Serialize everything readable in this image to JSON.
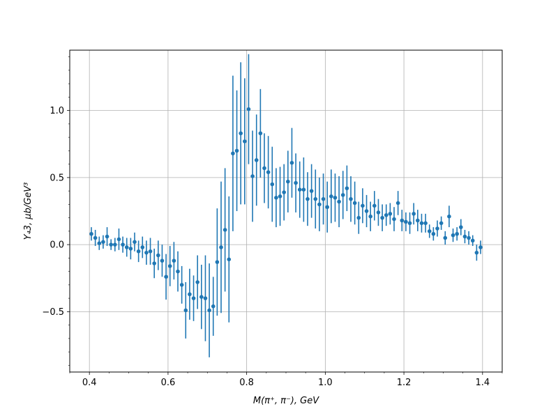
{
  "chart_data": {
    "type": "scatter",
    "title": "",
    "xlabel": "M(π⁺, π⁻), GeV",
    "ylabel": "Y₄3, μb/GeV³",
    "xlim": [
      0.35,
      1.45
    ],
    "ylim": [
      -0.95,
      1.45
    ],
    "xticks": [
      0.4,
      0.6,
      0.8,
      1.0,
      1.2,
      1.4
    ],
    "xtick_labels": [
      "0.4",
      "0.6",
      "0.8",
      "1.0",
      "1.2",
      "1.4"
    ],
    "yticks": [
      -0.5,
      0.0,
      0.5,
      1.0
    ],
    "ytick_labels": [
      "−0.5",
      "0.0",
      "0.5",
      "1.0"
    ],
    "grid": true,
    "color": "#1f77b4",
    "series": [
      {
        "name": "",
        "x": [
          0.405,
          0.415,
          0.425,
          0.435,
          0.445,
          0.455,
          0.465,
          0.475,
          0.485,
          0.495,
          0.505,
          0.515,
          0.525,
          0.535,
          0.545,
          0.555,
          0.565,
          0.575,
          0.585,
          0.595,
          0.605,
          0.615,
          0.625,
          0.635,
          0.645,
          0.655,
          0.665,
          0.675,
          0.685,
          0.695,
          0.705,
          0.715,
          0.725,
          0.735,
          0.745,
          0.755,
          0.765,
          0.775,
          0.785,
          0.795,
          0.805,
          0.815,
          0.825,
          0.835,
          0.845,
          0.855,
          0.865,
          0.875,
          0.885,
          0.895,
          0.905,
          0.915,
          0.925,
          0.935,
          0.945,
          0.955,
          0.965,
          0.975,
          0.985,
          0.995,
          1.005,
          1.015,
          1.025,
          1.035,
          1.045,
          1.055,
          1.065,
          1.075,
          1.085,
          1.095,
          1.105,
          1.115,
          1.125,
          1.135,
          1.145,
          1.155,
          1.165,
          1.175,
          1.185,
          1.195,
          1.205,
          1.215,
          1.225,
          1.235,
          1.245,
          1.255,
          1.265,
          1.275,
          1.285,
          1.295,
          1.305,
          1.315,
          1.325,
          1.335,
          1.345,
          1.355,
          1.365,
          1.375,
          1.385,
          1.395
        ],
        "y": [
          0.08,
          0.05,
          0.01,
          0.02,
          0.06,
          0.0,
          0.0,
          0.04,
          0.0,
          -0.02,
          -0.03,
          0.02,
          -0.05,
          -0.02,
          -0.06,
          -0.05,
          -0.14,
          -0.08,
          -0.12,
          -0.24,
          -0.16,
          -0.12,
          -0.2,
          -0.3,
          -0.49,
          -0.37,
          -0.4,
          -0.28,
          -0.39,
          -0.4,
          -0.49,
          -0.46,
          -0.13,
          -0.02,
          0.11,
          -0.11,
          0.68,
          0.7,
          0.83,
          0.77,
          1.01,
          0.51,
          0.63,
          0.83,
          0.57,
          0.54,
          0.45,
          0.35,
          0.36,
          0.39,
          0.47,
          0.61,
          0.46,
          0.41,
          0.41,
          0.34,
          0.4,
          0.34,
          0.3,
          0.34,
          0.28,
          0.36,
          0.35,
          0.32,
          0.37,
          0.42,
          0.34,
          0.31,
          0.2,
          0.29,
          0.25,
          0.21,
          0.29,
          0.24,
          0.2,
          0.22,
          0.23,
          0.19,
          0.31,
          0.18,
          0.17,
          0.16,
          0.23,
          0.18,
          0.16,
          0.16,
          0.1,
          0.08,
          0.12,
          0.16,
          0.05,
          0.21,
          0.07,
          0.08,
          0.13,
          0.06,
          0.05,
          0.03,
          -0.06,
          -0.02
        ],
        "yerr": [
          0.05,
          0.06,
          0.05,
          0.05,
          0.07,
          0.04,
          0.05,
          0.08,
          0.06,
          0.07,
          0.08,
          0.07,
          0.08,
          0.08,
          0.09,
          0.1,
          0.11,
          0.11,
          0.12,
          0.17,
          0.15,
          0.14,
          0.15,
          0.14,
          0.21,
          0.19,
          0.17,
          0.2,
          0.24,
          0.32,
          0.35,
          0.22,
          0.4,
          0.49,
          0.46,
          0.47,
          0.58,
          0.45,
          0.53,
          0.47,
          0.41,
          0.34,
          0.34,
          0.33,
          0.26,
          0.27,
          0.28,
          0.22,
          0.22,
          0.21,
          0.23,
          0.26,
          0.22,
          0.21,
          0.24,
          0.2,
          0.2,
          0.22,
          0.2,
          0.19,
          0.19,
          0.2,
          0.18,
          0.19,
          0.18,
          0.17,
          0.17,
          0.16,
          0.12,
          0.13,
          0.12,
          0.11,
          0.11,
          0.1,
          0.1,
          0.08,
          0.08,
          0.09,
          0.09,
          0.08,
          0.07,
          0.08,
          0.08,
          0.08,
          0.07,
          0.07,
          0.05,
          0.05,
          0.06,
          0.05,
          0.05,
          0.08,
          0.05,
          0.05,
          0.06,
          0.05,
          0.05,
          0.04,
          0.06,
          0.05
        ]
      }
    ]
  }
}
